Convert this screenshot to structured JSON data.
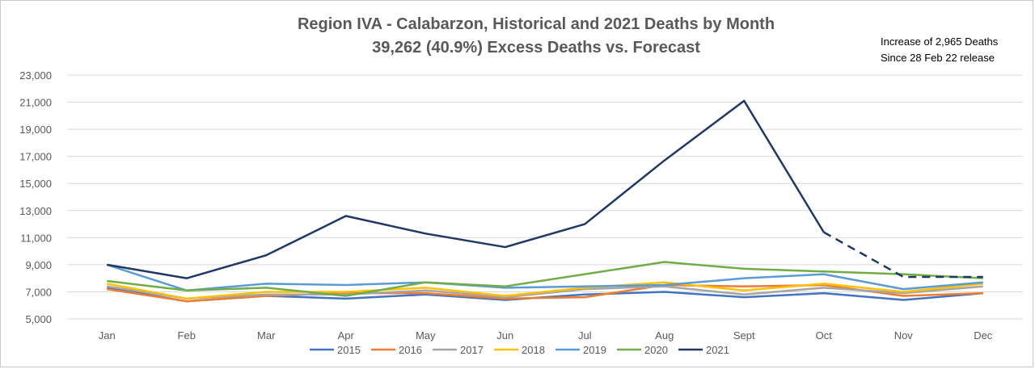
{
  "chart_data": {
    "type": "line",
    "title": "Region IVA - Calabarzon, Historical and 2021 Deaths by Month",
    "subtitle": "39,262 (40.9%) Excess Deaths vs. Forecast",
    "annotation": [
      "Increase of 2,965 Deaths",
      "Since 28 Feb 22 release"
    ],
    "categories": [
      "Jan",
      "Feb",
      "Mar",
      "Apr",
      "May",
      "Jun",
      "Jul",
      "Aug",
      "Sept",
      "Oct",
      "Nov",
      "Dec"
    ],
    "ylim": [
      5000,
      23000
    ],
    "yticks": [
      5000,
      7000,
      9000,
      11000,
      13000,
      15000,
      17000,
      19000,
      21000,
      23000
    ],
    "ytick_labels": [
      "5,000",
      "7,000",
      "9,000",
      "11,000",
      "13,000",
      "15,000",
      "17,000",
      "19,000",
      "21,000",
      "23,000"
    ],
    "grid": true,
    "legend_position": "bottom",
    "series": [
      {
        "name": "2015",
        "color": "#4472c4",
        "values": [
          7300,
          6300,
          6700,
          6500,
          6800,
          6400,
          6800,
          7000,
          6600,
          6900,
          6400,
          6900
        ]
      },
      {
        "name": "2016",
        "color": "#ed7d31",
        "values": [
          7200,
          6300,
          6700,
          6900,
          6900,
          6500,
          6600,
          7500,
          7400,
          7500,
          6700,
          6900
        ]
      },
      {
        "name": "2017",
        "color": "#a5a5a5",
        "values": [
          7400,
          6500,
          6800,
          6800,
          7100,
          6600,
          7200,
          7400,
          6800,
          7300,
          6900,
          7400
        ]
      },
      {
        "name": "2018",
        "color": "#ffc000",
        "values": [
          7600,
          6500,
          7000,
          7000,
          7300,
          6700,
          7300,
          7700,
          7100,
          7600,
          7000,
          7600
        ]
      },
      {
        "name": "2019",
        "color": "#5b9bd5",
        "values": [
          9000,
          7100,
          7600,
          7500,
          7700,
          7300,
          7400,
          7500,
          8000,
          8300,
          7200,
          7700
        ]
      },
      {
        "name": "2020",
        "color": "#70ad47",
        "values": [
          7800,
          7100,
          7300,
          6700,
          7700,
          7400,
          8300,
          9200,
          8700,
          8500,
          8300,
          8000
        ]
      },
      {
        "name": "2021",
        "color": "#1f3864",
        "values": [
          9000,
          8000,
          9700,
          12600,
          11300,
          10300,
          12000,
          16700,
          21100,
          11400,
          8100,
          8100
        ],
        "dashed_from_index": 9
      }
    ]
  }
}
